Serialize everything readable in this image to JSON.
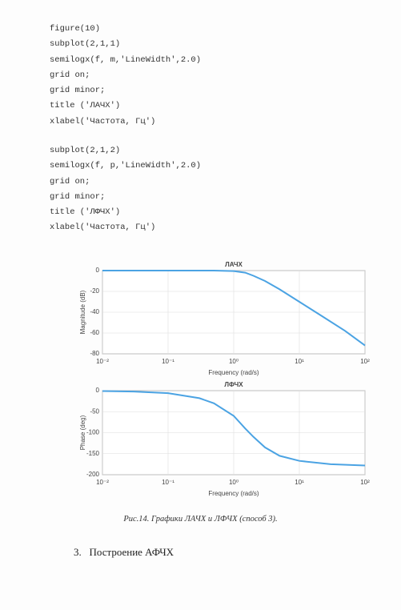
{
  "code_blocks": [
    [
      "figure(10)",
      "subplot(2,1,1)",
      "semilogx(f, m,'LineWidth',2.0)",
      "grid on;",
      "grid minor;",
      "title ('ЛАЧХ')",
      "xlabel('Частота, Гц')"
    ],
    [
      "subplot(2,1,2)",
      "semilogx(f, p,'LineWidth',2.0)",
      "grid on;",
      "grid minor;",
      "title ('ЛФЧХ')",
      "xlabel('Частота, Гц')"
    ]
  ],
  "chart_data": [
    {
      "type": "line",
      "title": "ЛАЧХ",
      "xlabel": "Frequency (rad/s)",
      "ylabel": "Magnitude (dB)",
      "xscale": "log",
      "grid": true,
      "color": "#4ba3e3",
      "x": [
        0.01,
        0.1,
        0.5,
        1,
        1.5,
        2,
        3,
        5,
        10,
        20,
        50,
        100
      ],
      "values": [
        0,
        0,
        0,
        -0.5,
        -2,
        -5,
        -10,
        -18,
        -30,
        -42,
        -58,
        -72
      ],
      "xlim": [
        0.01,
        100
      ],
      "xticks": [
        {
          "value": 0.01,
          "label": "10⁻²"
        },
        {
          "value": 0.1,
          "label": "10⁻¹"
        },
        {
          "value": 1,
          "label": "10⁰"
        },
        {
          "value": 10,
          "label": "10¹"
        },
        {
          "value": 100,
          "label": "10²"
        }
      ],
      "ylim": [
        -80,
        0
      ],
      "yticks": [
        -80,
        -60,
        -40,
        -20,
        0
      ]
    },
    {
      "type": "line",
      "title": "ЛФЧХ",
      "xlabel": "Frequency (rad/s)",
      "ylabel": "Phase (deg)",
      "xscale": "log",
      "grid": true,
      "color": "#4ba3e3",
      "x": [
        0.01,
        0.03,
        0.1,
        0.3,
        0.5,
        1,
        1.5,
        2,
        3,
        5,
        10,
        30,
        100
      ],
      "values": [
        -1,
        -2,
        -6,
        -18,
        -30,
        -60,
        -90,
        -110,
        -135,
        -155,
        -167,
        -175,
        -178
      ],
      "xlim": [
        0.01,
        100
      ],
      "xticks": [
        {
          "value": 0.01,
          "label": "10⁻²"
        },
        {
          "value": 0.1,
          "label": "10⁻¹"
        },
        {
          "value": 1,
          "label": "10⁰"
        },
        {
          "value": 10,
          "label": "10¹"
        },
        {
          "value": 100,
          "label": "10²"
        }
      ],
      "ylim": [
        -200,
        0
      ],
      "yticks": [
        -200,
        -150,
        -100,
        -50,
        0
      ]
    }
  ],
  "caption": "Рис.14. Графики ЛАЧХ и ЛФЧХ (способ 3).",
  "heading": "3.   Построение АФЧХ"
}
